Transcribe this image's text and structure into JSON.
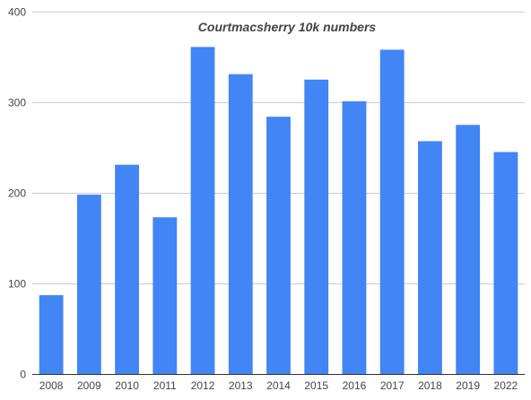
{
  "chart_data": {
    "type": "bar",
    "title": "Courtmacsherry 10k numbers",
    "xlabel": "",
    "ylabel": "",
    "categories": [
      "2008",
      "2009",
      "2010",
      "2011",
      "2012",
      "2013",
      "2014",
      "2015",
      "2016",
      "2017",
      "2018",
      "2019",
      "2022"
    ],
    "values": [
      87,
      198,
      231,
      173,
      361,
      331,
      284,
      325,
      301,
      358,
      257,
      275,
      245
    ],
    "ylim": [
      0,
      400
    ],
    "yticks": [
      0,
      100,
      200,
      300,
      400
    ],
    "grid": true,
    "legend": "none",
    "bar_color": "#4285f4",
    "grid_color": "#cccccc",
    "axis_color": "#333333",
    "text_color": "#444444"
  }
}
